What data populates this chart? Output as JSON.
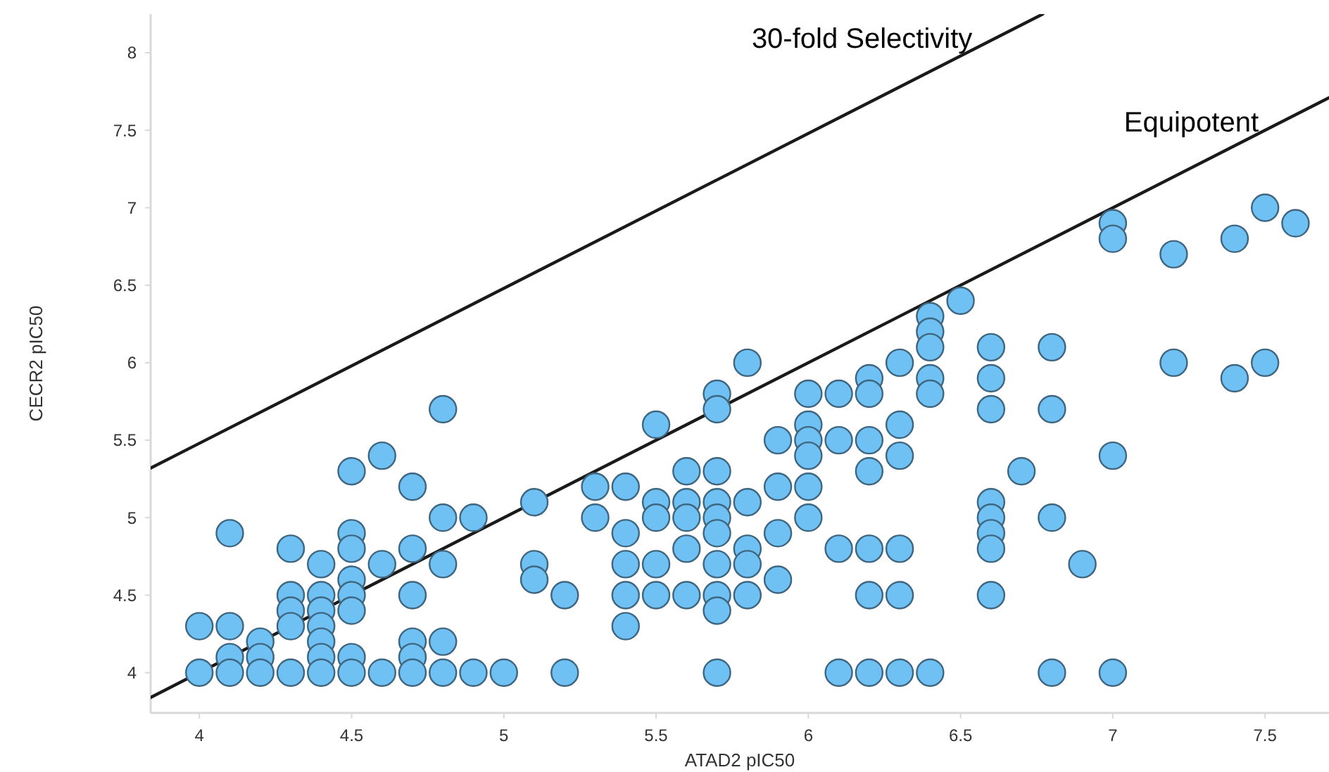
{
  "chart_data": {
    "type": "scatter",
    "xlabel": "ATAD2 pIC50",
    "ylabel": "CECR2 pIC50",
    "xlim": [
      3.84,
      7.71
    ],
    "ylim": [
      3.74,
      8.25
    ],
    "xticks": [
      4,
      4.5,
      5,
      5.5,
      6,
      6.5,
      7,
      7.5
    ],
    "yticks": [
      4,
      4.5,
      5,
      5.5,
      6,
      6.5,
      7,
      7.5,
      8
    ],
    "grid": false,
    "series": [
      {
        "marker": "circle",
        "color": "#6ec1f2",
        "x": [
          4,
          4,
          4.1,
          4.1,
          4.1,
          4.1,
          4.2,
          4.2,
          4.2,
          4.3,
          4.3,
          4.3,
          4.3,
          4.3,
          4.4,
          4.4,
          4.4,
          4.4,
          4.4,
          4.4,
          4.4,
          4.5,
          4.5,
          4.5,
          4.5,
          4.5,
          4.5,
          4.5,
          4.5,
          4.6,
          4.6,
          4.6,
          4.7,
          4.7,
          4.7,
          4.7,
          4.7,
          4.7,
          4.8,
          4.8,
          4.8,
          4.8,
          4.8,
          4.9,
          4.9,
          5.0,
          5.1,
          5.1,
          5.1,
          5.2,
          5.2,
          5.3,
          5.3,
          5.4,
          5.4,
          5.4,
          5.4,
          5.4,
          5.5,
          5.5,
          5.5,
          5.5,
          5.5,
          5.6,
          5.6,
          5.6,
          5.6,
          5.6,
          5.7,
          5.7,
          5.7,
          5.7,
          5.7,
          5.7,
          5.7,
          5.7,
          5.7,
          5.7,
          5.8,
          5.8,
          5.8,
          5.8,
          5.8,
          5.9,
          5.9,
          5.9,
          5.9,
          6.0,
          6.0,
          6.0,
          6.0,
          6.0,
          6.0,
          6.1,
          6.1,
          6.1,
          6.1,
          6.2,
          6.2,
          6.2,
          6.2,
          6.2,
          6.2,
          6.2,
          6.3,
          6.3,
          6.3,
          6.3,
          6.3,
          6.3,
          6.4,
          6.4,
          6.4,
          6.4,
          6.4,
          6.4,
          6.5,
          6.6,
          6.6,
          6.6,
          6.6,
          6.6,
          6.6,
          6.6,
          6.6,
          6.7,
          6.8,
          6.8,
          6.8,
          6.8,
          6.9,
          7.0,
          7.0,
          7.0,
          7.0,
          7.2,
          7.2,
          7.4,
          7.4,
          7.5,
          7.5,
          7.6
        ],
        "values": [
          4.3,
          4.0,
          4.9,
          4.3,
          4.1,
          4.0,
          4.2,
          4.1,
          4.0,
          4.8,
          4.5,
          4.4,
          4.3,
          4.0,
          4.7,
          4.5,
          4.4,
          4.3,
          4.2,
          4.1,
          4.0,
          5.3,
          4.9,
          4.8,
          4.6,
          4.5,
          4.4,
          4.1,
          4.0,
          5.4,
          4.7,
          4.0,
          5.2,
          4.8,
          4.5,
          4.2,
          4.1,
          4.0,
          5.7,
          5.0,
          4.7,
          4.2,
          4.0,
          5.0,
          4.0,
          4.0,
          5.1,
          4.7,
          4.6,
          4.5,
          4.0,
          5.2,
          5.0,
          5.2,
          4.9,
          4.7,
          4.5,
          4.3,
          5.6,
          5.1,
          5.0,
          4.7,
          4.5,
          5.3,
          5.1,
          5.0,
          4.8,
          4.5,
          5.8,
          5.7,
          5.3,
          5.1,
          5.0,
          4.9,
          4.7,
          4.5,
          4.4,
          4.0,
          6.0,
          5.1,
          4.8,
          4.7,
          4.5,
          5.5,
          5.2,
          4.9,
          4.6,
          5.8,
          5.6,
          5.5,
          5.4,
          5.2,
          5.0,
          5.8,
          5.5,
          4.8,
          4.0,
          5.9,
          5.8,
          5.5,
          5.3,
          4.8,
          4.5,
          4.0,
          6.0,
          5.6,
          5.4,
          4.8,
          4.5,
          4.0,
          6.3,
          6.2,
          6.1,
          5.9,
          5.8,
          4.0,
          6.4,
          6.1,
          5.9,
          5.7,
          5.1,
          5.0,
          4.9,
          4.8,
          4.5,
          5.3,
          6.1,
          5.7,
          5.0,
          4.0,
          4.7,
          6.9,
          6.8,
          5.4,
          4.0,
          6.7,
          6.0,
          6.8,
          5.9,
          7.0,
          6.0,
          6.9
        ]
      },
      {
        "type": "line",
        "marker": "none",
        "name": "30-fold Selectivity",
        "color": "#1a1a1a",
        "x": [
          3.84,
          6.77
        ],
        "values": [
          5.32,
          8.25
        ]
      },
      {
        "type": "line",
        "marker": "none",
        "name": "Equipotent",
        "color": "#1a1a1a",
        "x": [
          3.84,
          7.71
        ],
        "values": [
          3.84,
          7.71
        ]
      }
    ]
  }
}
